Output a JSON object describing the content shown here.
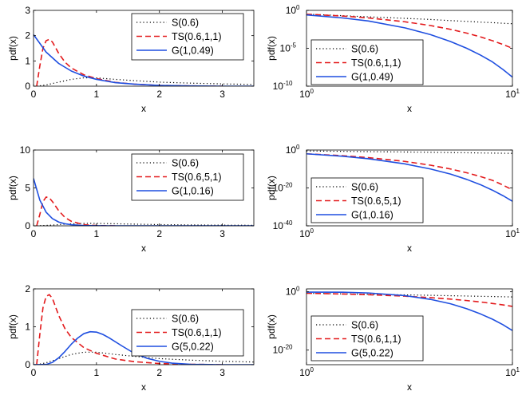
{
  "chart_data": [
    {
      "type": "line",
      "xlabel": "x",
      "ylabel": "pdf(x)",
      "xlim": [
        0,
        3.5
      ],
      "ylim": [
        0,
        3
      ],
      "yscale": "linear",
      "xscale": "linear",
      "xticks": [
        0,
        1,
        2,
        3
      ],
      "yticks": [
        0,
        1,
        2,
        3
      ],
      "xtick_labels": [
        "0",
        "1",
        "2",
        "3"
      ],
      "ytick_labels": [
        "0",
        "1",
        "2",
        "3"
      ],
      "legend_position": "top-right",
      "series": [
        {
          "name": "S(0.6)",
          "style": "dotted",
          "color": "#000000",
          "x": [
            0.05,
            0.2,
            0.4,
            0.6,
            0.8,
            1.0,
            1.3,
            1.6,
            2.0,
            2.5,
            3.0,
            3.5
          ],
          "y": [
            0.0,
            0.05,
            0.16,
            0.27,
            0.33,
            0.33,
            0.27,
            0.22,
            0.16,
            0.12,
            0.09,
            0.07
          ]
        },
        {
          "name": "TS(0.6,1,1)",
          "style": "dashed",
          "color": "#e31a1c",
          "x": [
            0.05,
            0.1,
            0.15,
            0.2,
            0.25,
            0.3,
            0.4,
            0.5,
            0.6,
            0.8,
            1.0,
            1.3,
            1.6,
            2.0,
            2.5,
            3.0
          ],
          "y": [
            0.0,
            0.8,
            1.5,
            1.8,
            1.85,
            1.75,
            1.3,
            0.95,
            0.72,
            0.45,
            0.3,
            0.15,
            0.08,
            0.03,
            0.01,
            0.0
          ]
        },
        {
          "name": "G(1,0.49)",
          "style": "solid",
          "color": "#1f4fe0",
          "x": [
            0.0,
            0.2,
            0.4,
            0.6,
            0.8,
            1.0,
            1.3,
            1.6,
            2.0,
            2.5,
            3.0,
            3.5
          ],
          "y": [
            2.04,
            1.35,
            0.9,
            0.6,
            0.4,
            0.27,
            0.14,
            0.08,
            0.03,
            0.01,
            0.0,
            0.0
          ]
        }
      ]
    },
    {
      "type": "line",
      "xlabel": "x",
      "ylabel": "pdf(x)",
      "xlim": [
        1,
        10
      ],
      "ylim": [
        -10,
        0
      ],
      "xscale": "log",
      "yscale": "log",
      "xticks": [
        1,
        10
      ],
      "yticks": [
        0,
        -5,
        -10
      ],
      "xtick_labels": [
        [
          "10",
          "0"
        ],
        [
          "10",
          "1"
        ]
      ],
      "ytick_labels": [
        [
          "10",
          "0"
        ],
        [
          "10",
          "-5"
        ],
        [
          "10",
          "-10"
        ]
      ],
      "legend_position": "bottom-left",
      "series": [
        {
          "name": "S(0.6)",
          "style": "dotted",
          "color": "#000000",
          "x": [
            1,
            1.5,
            2,
            3,
            4,
            5,
            6,
            7,
            8,
            9,
            10
          ],
          "y": [
            -0.5,
            -0.7,
            -0.85,
            -1.05,
            -1.2,
            -1.35,
            -1.45,
            -1.55,
            -1.62,
            -1.7,
            -1.76
          ]
        },
        {
          "name": "TS(0.6,1,1)",
          "style": "dashed",
          "color": "#e31a1c",
          "x": [
            1,
            1.5,
            2,
            3,
            4,
            5,
            6,
            7,
            8,
            9,
            10
          ],
          "y": [
            -0.5,
            -0.75,
            -1.0,
            -1.5,
            -2.0,
            -2.5,
            -3.0,
            -3.5,
            -4.0,
            -4.5,
            -5.0
          ]
        },
        {
          "name": "G(1,0.49)",
          "style": "solid",
          "color": "#1f4fe0",
          "x": [
            1,
            1.5,
            2,
            3,
            4,
            5,
            6,
            7,
            8,
            9,
            10
          ],
          "y": [
            -0.6,
            -1.0,
            -1.4,
            -2.3,
            -3.2,
            -4.1,
            -5.0,
            -5.9,
            -6.8,
            -7.8,
            -8.8
          ]
        }
      ]
    },
    {
      "type": "line",
      "xlabel": "x",
      "ylabel": "pdf(x)",
      "xlim": [
        0,
        3.5
      ],
      "ylim": [
        0,
        10
      ],
      "yscale": "linear",
      "xscale": "linear",
      "xticks": [
        0,
        1,
        2,
        3
      ],
      "yticks": [
        0,
        5,
        10
      ],
      "xtick_labels": [
        "0",
        "1",
        "2",
        "3"
      ],
      "ytick_labels": [
        "0",
        "5",
        "10"
      ],
      "legend_position": "top-right",
      "series": [
        {
          "name": "S(0.6)",
          "style": "dotted",
          "color": "#000000",
          "x": [
            0.05,
            0.2,
            0.4,
            0.6,
            0.8,
            1.0,
            1.5,
            2.0,
            2.5,
            3.0,
            3.5
          ],
          "y": [
            0.0,
            0.05,
            0.16,
            0.27,
            0.33,
            0.33,
            0.24,
            0.16,
            0.12,
            0.09,
            0.07
          ]
        },
        {
          "name": "TS(0.6,5,1)",
          "style": "dashed",
          "color": "#e31a1c",
          "x": [
            0.05,
            0.1,
            0.15,
            0.2,
            0.25,
            0.3,
            0.4,
            0.5,
            0.6,
            0.8,
            1.0,
            1.3
          ],
          "y": [
            0.0,
            1.5,
            3.2,
            3.8,
            3.7,
            3.2,
            2.0,
            1.1,
            0.6,
            0.15,
            0.03,
            0.0
          ]
        },
        {
          "name": "G(1,0.16)",
          "style": "solid",
          "color": "#1f4fe0",
          "x": [
            0.0,
            0.1,
            0.2,
            0.3,
            0.4,
            0.5,
            0.6,
            0.8,
            1.0,
            1.2,
            1.5,
            2.0,
            3.5
          ],
          "y": [
            6.25,
            3.4,
            1.8,
            0.95,
            0.5,
            0.27,
            0.15,
            0.04,
            0.012,
            0.0,
            0.0,
            0.0,
            0.0
          ]
        }
      ]
    },
    {
      "type": "line",
      "xlabel": "x",
      "ylabel": "pdf(x)",
      "xlim": [
        1,
        10
      ],
      "ylim": [
        -40,
        0
      ],
      "xscale": "log",
      "yscale": "log",
      "xticks": [
        1,
        10
      ],
      "yticks": [
        0,
        -20,
        -40
      ],
      "xtick_labels": [
        [
          "10",
          "0"
        ],
        [
          "10",
          "1"
        ]
      ],
      "ytick_labels": [
        [
          "10",
          "0"
        ],
        [
          "10",
          "-20"
        ],
        [
          "10",
          "-40"
        ]
      ],
      "legend_position": "bottom-left",
      "series": [
        {
          "name": "S(0.6)",
          "style": "dotted",
          "color": "#000000",
          "x": [
            1,
            1.5,
            2,
            3,
            4,
            5,
            6,
            7,
            8,
            9,
            10
          ],
          "y": [
            -0.5,
            -0.7,
            -0.85,
            -1.05,
            -1.2,
            -1.35,
            -1.45,
            -1.55,
            -1.62,
            -1.7,
            -1.76
          ]
        },
        {
          "name": "TS(0.6,5,1)",
          "style": "dashed",
          "color": "#e31a1c",
          "x": [
            1,
            1.5,
            2,
            3,
            4,
            5,
            6,
            7,
            8,
            9,
            10
          ],
          "y": [
            -2.0,
            -3.0,
            -4.0,
            -6.0,
            -8.0,
            -10.0,
            -12.0,
            -14.0,
            -16.0,
            -18.5,
            -21.0
          ]
        },
        {
          "name": "G(1,0.16)",
          "style": "solid",
          "color": "#1f4fe0",
          "x": [
            1,
            1.5,
            2,
            3,
            4,
            5,
            6,
            7,
            8,
            9,
            10
          ],
          "y": [
            -2.0,
            -3.3,
            -4.6,
            -7.3,
            -10.0,
            -12.7,
            -15.5,
            -18.3,
            -21.2,
            -24.1,
            -27.0
          ]
        }
      ]
    },
    {
      "type": "line",
      "xlabel": "x",
      "ylabel": "pdf(x)",
      "xlim": [
        0,
        3.5
      ],
      "ylim": [
        0,
        2
      ],
      "yscale": "linear",
      "xscale": "linear",
      "xticks": [
        0,
        1,
        2,
        3
      ],
      "yticks": [
        0,
        1,
        2
      ],
      "xtick_labels": [
        "0",
        "1",
        "2",
        "3"
      ],
      "ytick_labels": [
        "0",
        "1",
        "2"
      ],
      "legend_position": "top-right",
      "series": [
        {
          "name": "S(0.6)",
          "style": "dotted",
          "color": "#000000",
          "x": [
            0.05,
            0.2,
            0.4,
            0.6,
            0.8,
            1.0,
            1.3,
            1.6,
            2.0,
            2.5,
            3.0,
            3.5
          ],
          "y": [
            0.0,
            0.05,
            0.16,
            0.27,
            0.33,
            0.33,
            0.27,
            0.22,
            0.16,
            0.12,
            0.09,
            0.07
          ]
        },
        {
          "name": "TS(0.6,1,1)",
          "style": "dashed",
          "color": "#e31a1c",
          "x": [
            0.05,
            0.1,
            0.15,
            0.2,
            0.25,
            0.3,
            0.4,
            0.5,
            0.6,
            0.8,
            1.0,
            1.3,
            1.6,
            2.0,
            2.5,
            3.0
          ],
          "y": [
            0.0,
            0.8,
            1.5,
            1.8,
            1.85,
            1.75,
            1.3,
            0.95,
            0.72,
            0.45,
            0.3,
            0.15,
            0.08,
            0.03,
            0.01,
            0.0
          ]
        },
        {
          "name": "G(5,0.22)",
          "style": "solid",
          "color": "#1f4fe0",
          "x": [
            0.0,
            0.2,
            0.3,
            0.4,
            0.5,
            0.6,
            0.7,
            0.8,
            0.9,
            1.0,
            1.1,
            1.2,
            1.4,
            1.6,
            1.8,
            2.0,
            2.2,
            2.5,
            3.0,
            3.5
          ],
          "y": [
            0.0,
            0.006,
            0.06,
            0.18,
            0.35,
            0.54,
            0.7,
            0.82,
            0.87,
            0.86,
            0.8,
            0.71,
            0.5,
            0.3,
            0.17,
            0.09,
            0.04,
            0.01,
            0.0,
            0.0
          ]
        }
      ]
    },
    {
      "type": "line",
      "xlabel": "x",
      "ylabel": "pdf(x)",
      "xlim": [
        1,
        10
      ],
      "ylim": [
        -25,
        1
      ],
      "xscale": "log",
      "yscale": "log",
      "xticks": [
        1,
        10
      ],
      "yticks": [
        0,
        -20
      ],
      "xtick_labels": [
        [
          "10",
          "0"
        ],
        [
          "10",
          "1"
        ]
      ],
      "ytick_labels": [
        [
          "10",
          "0"
        ],
        [
          "10",
          "-20"
        ]
      ],
      "legend_position": "bottom-left",
      "series": [
        {
          "name": "S(0.6)",
          "style": "dotted",
          "color": "#000000",
          "x": [
            1,
            1.5,
            2,
            3,
            4,
            5,
            6,
            7,
            8,
            9,
            10
          ],
          "y": [
            -0.5,
            -0.7,
            -0.85,
            -1.05,
            -1.2,
            -1.35,
            -1.45,
            -1.55,
            -1.62,
            -1.7,
            -1.76
          ]
        },
        {
          "name": "TS(0.6,1,1)",
          "style": "dashed",
          "color": "#e31a1c",
          "x": [
            1,
            1.5,
            2,
            3,
            4,
            5,
            6,
            7,
            8,
            9,
            10
          ],
          "y": [
            -0.5,
            -0.75,
            -1.0,
            -1.5,
            -2.0,
            -2.5,
            -3.0,
            -3.5,
            -4.0,
            -4.5,
            -5.0
          ]
        },
        {
          "name": "G(5,0.22)",
          "style": "solid",
          "color": "#1f4fe0",
          "x": [
            1,
            1.5,
            2,
            3,
            4,
            5,
            6,
            7,
            8,
            9,
            10
          ],
          "y": [
            -0.1,
            -0.15,
            -0.4,
            -1.3,
            -2.6,
            -4.1,
            -5.8,
            -7.6,
            -9.4,
            -11.3,
            -13.3
          ]
        }
      ]
    }
  ]
}
